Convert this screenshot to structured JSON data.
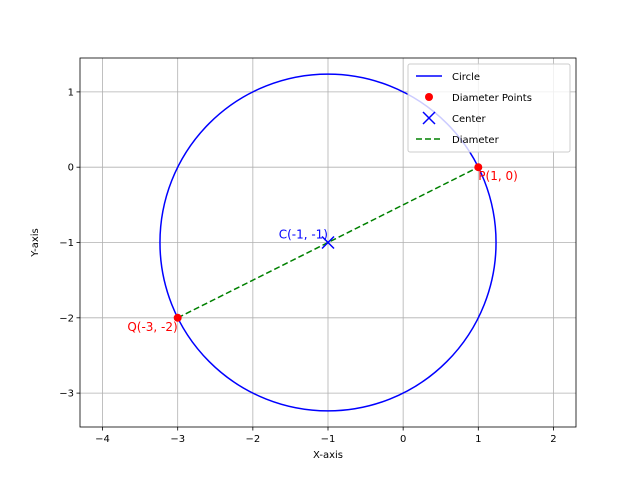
{
  "chart_data": {
    "type": "line",
    "title": "",
    "xlabel": "X-axis",
    "ylabel": "Y-axis",
    "xlim": [
      -4.3,
      2.3
    ],
    "ylim": [
      -3.45,
      1.45
    ],
    "xticks": [
      -4,
      -3,
      -2,
      -1,
      0,
      1,
      2
    ],
    "yticks": [
      -3,
      -2,
      -1,
      0,
      1
    ],
    "xtick_labels": [
      "−4",
      "−3",
      "−2",
      "−1",
      "0",
      "1",
      "2"
    ],
    "ytick_labels": [
      "−3",
      "−2",
      "−1",
      "0",
      "1"
    ],
    "grid": true,
    "equal_aspect": false,
    "legend_position": "top-right",
    "series": [
      {
        "name": "Circle",
        "kind": "circle",
        "center": [
          -1,
          -1
        ],
        "radius": 2.236,
        "color": "#0000ff",
        "style": "solid"
      },
      {
        "name": "Diameter Points",
        "kind": "scatter",
        "points": [
          [
            1,
            0
          ],
          [
            -3,
            -2
          ]
        ],
        "color": "#ff0000",
        "marker": "dot"
      },
      {
        "name": "Center",
        "kind": "scatter",
        "points": [
          [
            -1,
            -1
          ]
        ],
        "color": "#0000ff",
        "marker": "x"
      },
      {
        "name": "Diameter",
        "kind": "line",
        "points": [
          [
            -3,
            -2
          ],
          [
            1,
            0
          ]
        ],
        "color": "#008000",
        "style": "dashed"
      }
    ],
    "annotations": [
      {
        "text": "P(1, 0)",
        "at": [
          1,
          0
        ],
        "color": "#ff0000",
        "anchor": "start"
      },
      {
        "text": "Q(-3, -2)",
        "at": [
          -3,
          -2
        ],
        "color": "#ff0000",
        "anchor": "end"
      },
      {
        "text": "C(-1, -1)",
        "at": [
          -1,
          -1
        ],
        "color": "#0000ff",
        "anchor": "end"
      }
    ]
  }
}
